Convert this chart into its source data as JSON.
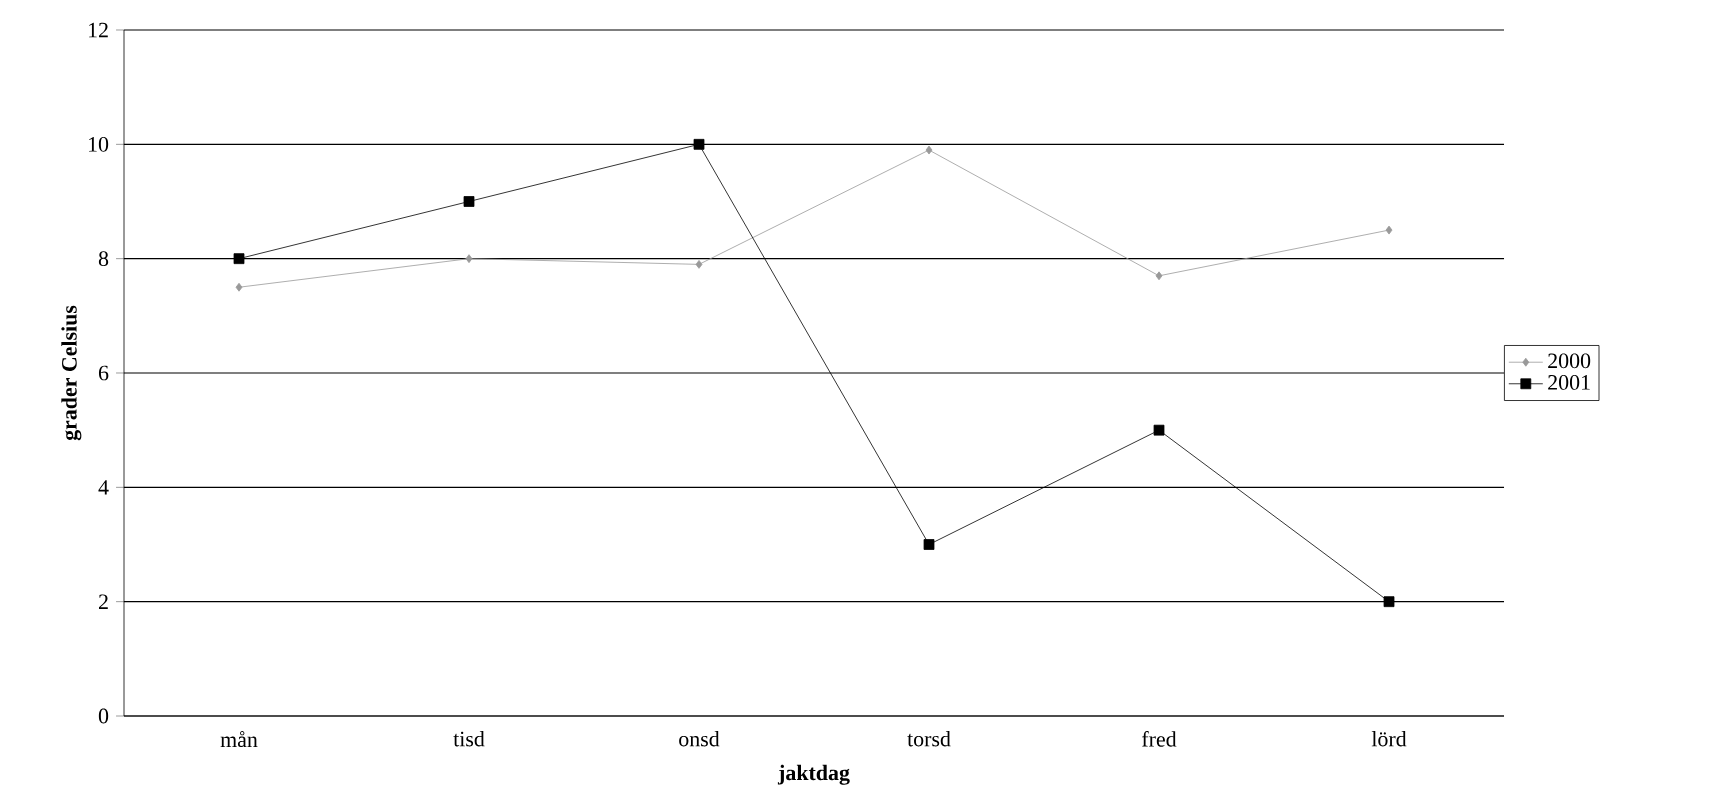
{
  "chart_data": {
    "type": "line",
    "xlabel": "jaktdag",
    "ylabel": "grader Celsius",
    "categories": [
      "mån",
      "tisd",
      "onsd",
      "torsd",
      "fred",
      "lörd"
    ],
    "series": [
      {
        "name": "2000",
        "color": "#999999",
        "marker": "diamond",
        "values": [
          7.5,
          8,
          7.9,
          9.9,
          7.7,
          8.5
        ]
      },
      {
        "name": "2001",
        "color": "#000000",
        "marker": "square",
        "values": [
          8,
          9,
          10,
          3,
          5,
          2
        ]
      }
    ],
    "ylim": [
      0,
      12
    ],
    "yticks": [
      0,
      2,
      4,
      6,
      8,
      10,
      12
    ],
    "grid": "y",
    "legend": "right",
    "line_style": "solid"
  }
}
